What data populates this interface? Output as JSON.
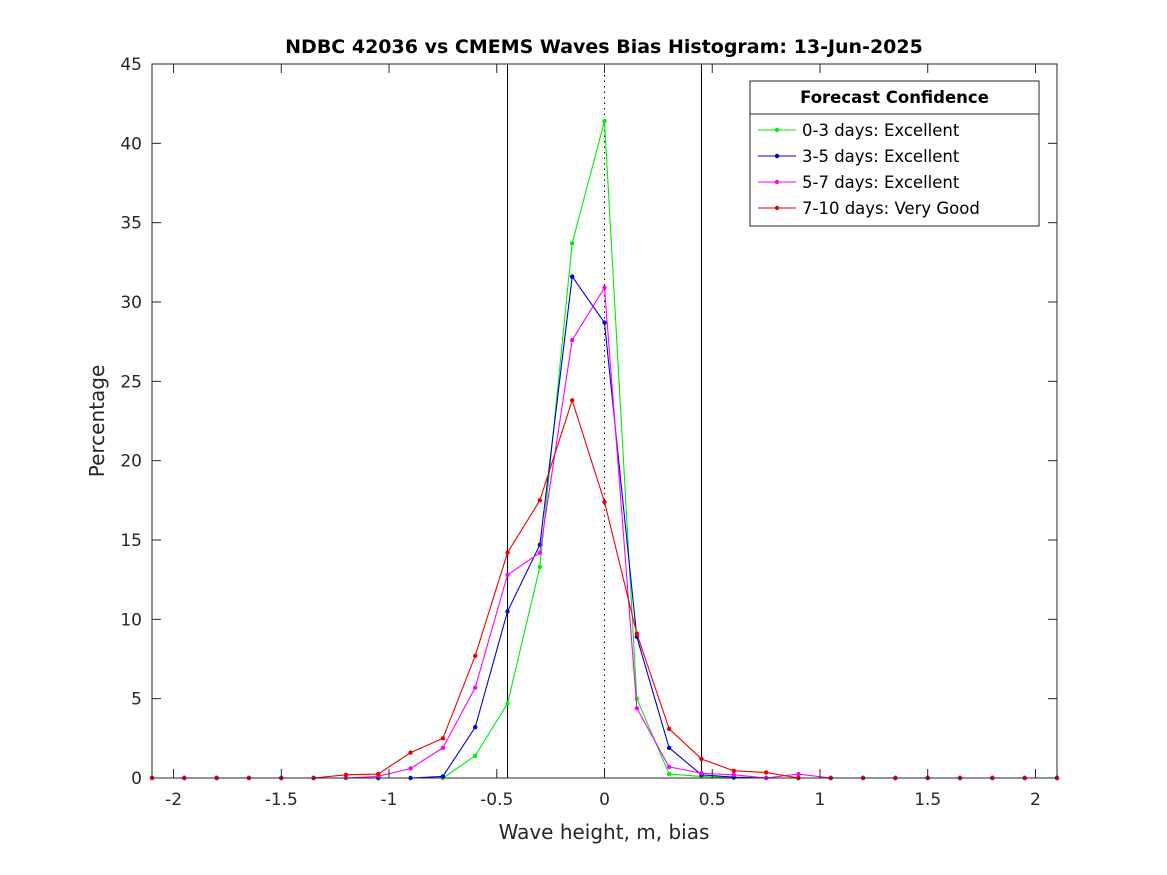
{
  "chart_data": {
    "type": "line",
    "title": "NDBC 42036 vs CMEMS Waves Bias Histogram: 13-Jun-2025",
    "xlabel": "Wave height, m, bias",
    "ylabel": "Percentage",
    "xlim": [
      -2.1,
      2.1
    ],
    "ylim": [
      0,
      45
    ],
    "xticks": [
      -2,
      -1.5,
      -1,
      -0.5,
      0,
      0.5,
      1,
      1.5,
      2
    ],
    "yticks": [
      0,
      5,
      10,
      15,
      20,
      25,
      30,
      35,
      40,
      45
    ],
    "grid": false,
    "vertical_lines": [
      {
        "x": -0.45,
        "style": "solid",
        "color": "#000000"
      },
      {
        "x": 0.45,
        "style": "solid",
        "color": "#000000"
      },
      {
        "x": 0,
        "style": "dotted",
        "color": "#000000"
      }
    ],
    "legend": {
      "title": "Forecast Confidence",
      "placement": "top-right"
    },
    "x": [
      -2.1,
      -1.95,
      -1.8,
      -1.65,
      -1.5,
      -1.35,
      -1.2,
      -1.05,
      -0.9,
      -0.75,
      -0.6,
      -0.45,
      -0.3,
      -0.15,
      0,
      0.15,
      0.3,
      0.45,
      0.6,
      0.75,
      0.9,
      1.05,
      1.2,
      1.35,
      1.5,
      1.65,
      1.8,
      1.95,
      2.1
    ],
    "series": [
      {
        "name": "0-3 days: Excellent",
        "color": "#00ee00",
        "values": [
          0,
          0,
          0,
          0,
          0,
          0,
          0,
          0,
          0,
          0,
          1.4,
          4.7,
          13.3,
          33.7,
          41.4,
          5.0,
          0.25,
          0.1,
          0,
          0,
          0,
          0,
          0,
          0,
          0,
          0,
          0,
          0,
          0
        ]
      },
      {
        "name": "3-5 days: Excellent",
        "color": "#0000dd",
        "values": [
          0,
          0,
          0,
          0,
          0,
          0,
          0,
          0,
          0,
          0.1,
          3.2,
          10.5,
          14.7,
          31.6,
          28.7,
          8.9,
          1.9,
          0.2,
          0.05,
          0,
          0,
          0,
          0,
          0,
          0,
          0,
          0,
          0,
          0
        ]
      },
      {
        "name": "5-7 days: Excellent",
        "color": "#ff00ff",
        "values": [
          0,
          0,
          0,
          0,
          0,
          0,
          0,
          0.1,
          0.6,
          1.9,
          5.7,
          12.8,
          14.2,
          27.6,
          30.9,
          4.4,
          0.7,
          0.3,
          0.2,
          0,
          0.25,
          0,
          0,
          0,
          0,
          0,
          0,
          0,
          0
        ]
      },
      {
        "name": "7-10 days: Very Good",
        "color": "#ee0000",
        "values": [
          0,
          0,
          0,
          0,
          0,
          0,
          0.2,
          0.25,
          1.6,
          2.5,
          7.7,
          14.2,
          17.5,
          23.8,
          17.4,
          9.1,
          3.1,
          1.2,
          0.45,
          0.35,
          0,
          0,
          0,
          0,
          0,
          0,
          0,
          0,
          0
        ]
      }
    ]
  }
}
